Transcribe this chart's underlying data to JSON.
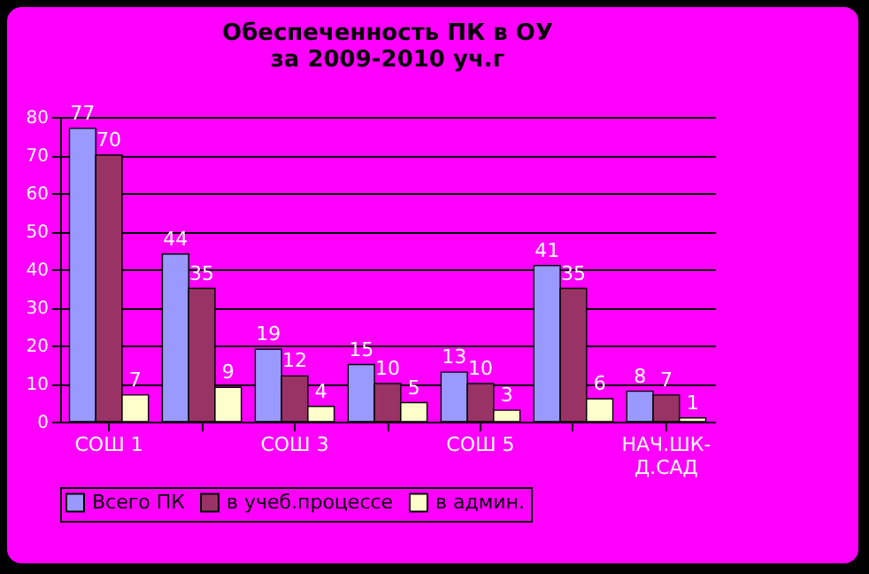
{
  "chart_data": {
    "type": "bar",
    "title": "Обеспеченность ПК в ОУ\nза 2009-2010 уч.г",
    "categories": [
      "СОШ 1",
      null,
      "СОШ 3",
      null,
      "СОШ 5",
      null,
      "НАЧ.ШК-Д.САД"
    ],
    "series": [
      {
        "name": "Всего ПК",
        "color": "#9999ff",
        "values": [
          77,
          44,
          19,
          15,
          13,
          41,
          8
        ]
      },
      {
        "name": "в учеб.процессе",
        "color": "#993366",
        "values": [
          70,
          35,
          12,
          10,
          10,
          35,
          7
        ]
      },
      {
        "name": "в админ.",
        "color": "#ffffcc",
        "values": [
          7,
          9,
          4,
          5,
          3,
          6,
          1
        ]
      }
    ],
    "data_labels": true,
    "ylim": [
      0,
      80
    ],
    "yticks": [
      0,
      10,
      20,
      30,
      40,
      50,
      60,
      70,
      80
    ],
    "grid": "y",
    "legend": "bottom"
  }
}
